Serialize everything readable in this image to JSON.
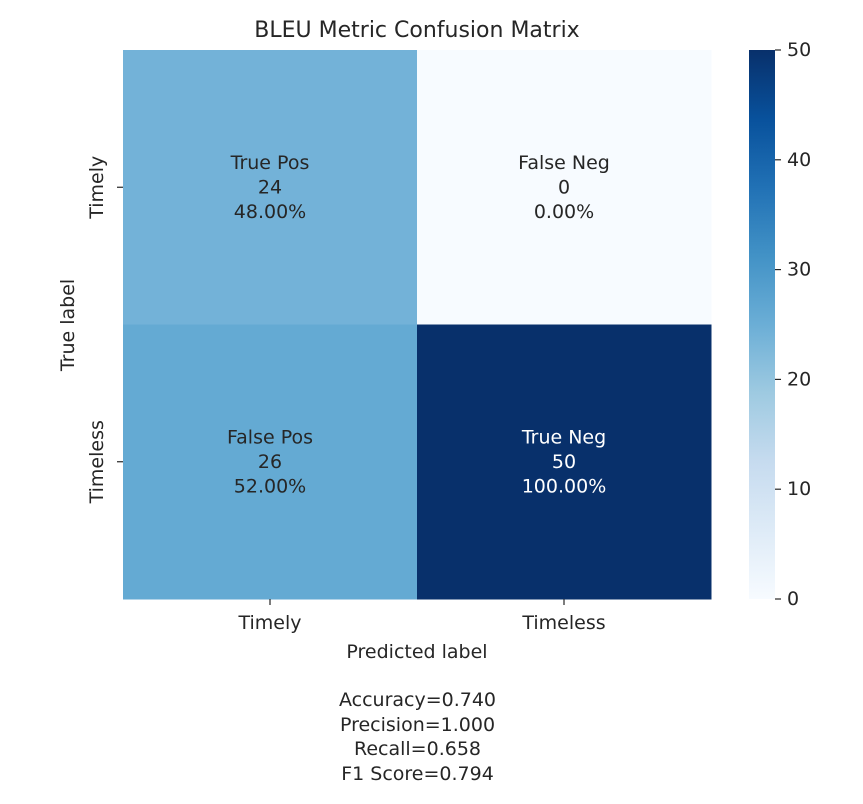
{
  "chart_data": {
    "type": "heatmap",
    "title": "BLEU Metric Confusion Matrix",
    "xlabel": "Predicted label",
    "ylabel": "True label",
    "x_categories": [
      "Timely",
      "Timeless"
    ],
    "y_categories": [
      "Timely",
      "Timeless"
    ],
    "values": [
      [
        24,
        0
      ],
      [
        26,
        50
      ]
    ],
    "cell_labels": [
      [
        [
          "True Pos",
          "24",
          "48.00%"
        ],
        [
          "False Neg",
          "0",
          "0.00%"
        ]
      ],
      [
        [
          "False Pos",
          "26",
          "52.00%"
        ],
        [
          "True Neg",
          "50",
          "100.00%"
        ]
      ]
    ],
    "colorbar": {
      "range": [
        0,
        50
      ],
      "ticks": [
        "0",
        "10",
        "20",
        "30",
        "40",
        "50"
      ]
    },
    "colormap": [
      "#f7fbff",
      "#deebf7",
      "#c6dbef",
      "#9ecae1",
      "#6baed6",
      "#4292c6",
      "#2171b5",
      "#08519c",
      "#08306b"
    ],
    "text_colors": {
      "dark": "#262626",
      "light": "#ffffff"
    }
  },
  "metrics": {
    "accuracy": "Accuracy=0.740",
    "precision": "Precision=1.000",
    "recall": "Recall=0.658",
    "f1": "F1 Score=0.794"
  }
}
